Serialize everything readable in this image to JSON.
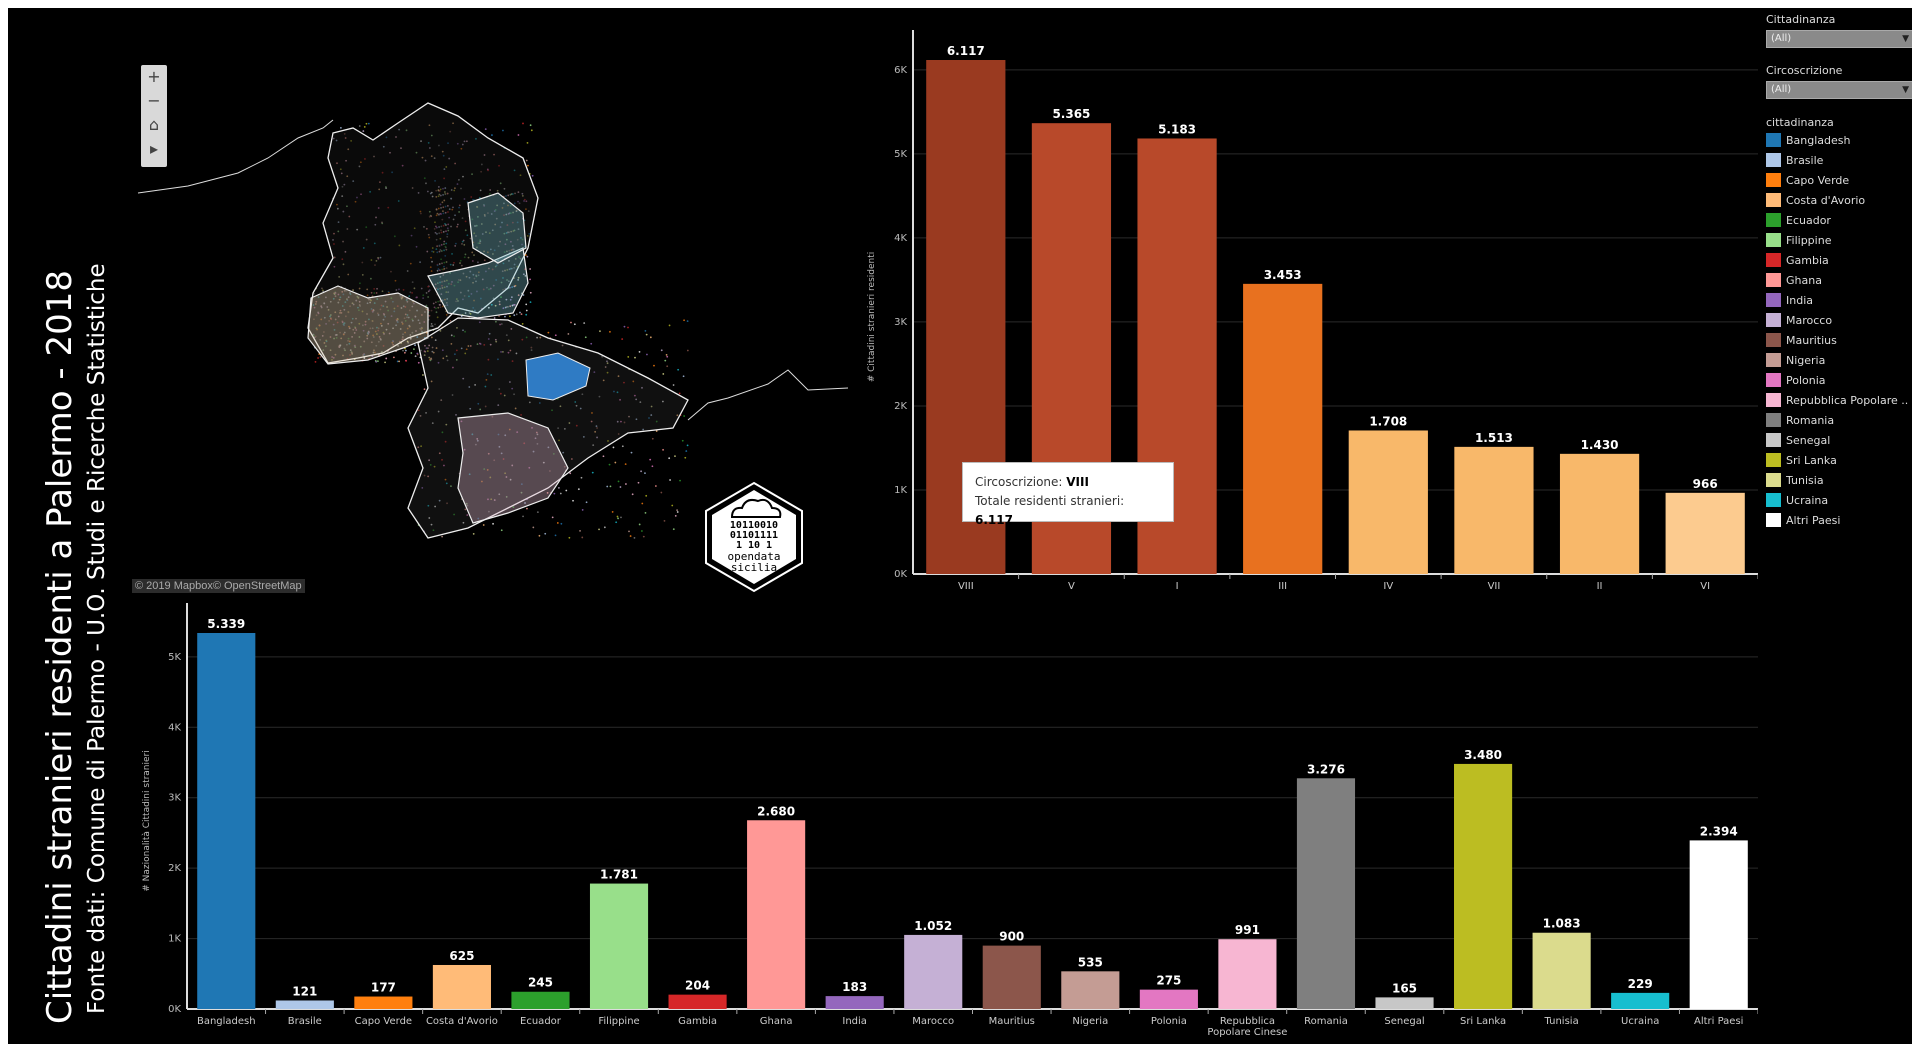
{
  "title": "Cittadini stranieri residenti a Palermo - 2018",
  "subtitle": "Fonte dati: Comune di Palermo - U.O. Studi e Ricerche Statistiche",
  "map": {
    "controls": [
      "+",
      "−",
      "⌂",
      "▸"
    ],
    "attribution": "© 2019 Mapbox© OpenStreetMap",
    "logo_lines": [
      "10110010",
      "01101111",
      "1   10 1",
      "opendata",
      "sicilia"
    ]
  },
  "tooltip": {
    "label1": "Circoscrizione: ",
    "value1": "VIII",
    "label2": "Totale residenti stranieri: ",
    "value2": "6.117"
  },
  "filters": [
    {
      "title": "Cittadinanza",
      "value": "(All)"
    },
    {
      "title": "Circoscrizione",
      "value": "(All)"
    }
  ],
  "legend": {
    "title": "cittadinanza",
    "items": [
      {
        "label": "Bangladesh",
        "color": "#1f77b4"
      },
      {
        "label": "Brasile",
        "color": "#aec7e8"
      },
      {
        "label": "Capo Verde",
        "color": "#ff7f0e"
      },
      {
        "label": "Costa d'Avorio",
        "color": "#ffbb78"
      },
      {
        "label": "Ecuador",
        "color": "#2ca02c"
      },
      {
        "label": "Filippine",
        "color": "#98df8a"
      },
      {
        "label": "Gambia",
        "color": "#d62728"
      },
      {
        "label": "Ghana",
        "color": "#ff9896"
      },
      {
        "label": "India",
        "color": "#9467bd"
      },
      {
        "label": "Marocco",
        "color": "#c5b0d5"
      },
      {
        "label": "Mauritius",
        "color": "#8c564b"
      },
      {
        "label": "Nigeria",
        "color": "#c49c94"
      },
      {
        "label": "Polonia",
        "color": "#e377c2"
      },
      {
        "label": "Repubblica Popolare ..",
        "color": "#f7b6d2"
      },
      {
        "label": "Romania",
        "color": "#7f7f7f"
      },
      {
        "label": "Senegal",
        "color": "#c7c7c7"
      },
      {
        "label": "Sri Lanka",
        "color": "#bcbd22"
      },
      {
        "label": "Tunisia",
        "color": "#dbdb8d"
      },
      {
        "label": "Ucraina",
        "color": "#17becf"
      },
      {
        "label": "Altri Paesi",
        "color": "#ffffff"
      }
    ]
  },
  "chart_data": [
    {
      "type": "bar",
      "ylabel": "# Cittadini stranieri residenti",
      "categories": [
        "VIII",
        "V",
        "I",
        "III",
        "IV",
        "VII",
        "II",
        "VI"
      ],
      "values": [
        6117,
        5365,
        5183,
        3453,
        1708,
        1513,
        1430,
        966
      ],
      "value_labels": [
        "6.117",
        "5.365",
        "5.183",
        "3.453",
        "1.708",
        "1.513",
        "1.430",
        "966"
      ],
      "colors": [
        "#9a3a20",
        "#b8492a",
        "#b8492a",
        "#e8711f",
        "#f8b86a",
        "#f8b86a",
        "#f8b86a",
        "#fccb8f"
      ],
      "ylim": [
        0,
        6117
      ],
      "yticks": [
        0,
        1000,
        2000,
        3000,
        4000,
        5000,
        6000
      ],
      "ytick_labels": [
        "0K",
        "1K",
        "2K",
        "3K",
        "4K",
        "5K",
        "6K"
      ],
      "grid": true
    },
    {
      "type": "bar",
      "ylabel": "# Nazionalità Cittadini stranieri",
      "categories": [
        "Bangladesh",
        "Brasile",
        "Capo Verde",
        "Costa d'Avorio",
        "Ecuador",
        "Filippine",
        "Gambia",
        "Ghana",
        "India",
        "Marocco",
        "Mauritius",
        "Nigeria",
        "Polonia",
        "Repubblica Popolare Cinese",
        "Romania",
        "Senegal",
        "Sri Lanka",
        "Tunisia",
        "Ucraina",
        "Altri Paesi"
      ],
      "category_lines": [
        [
          "Bangladesh"
        ],
        [
          "Brasile"
        ],
        [
          "Capo Verde"
        ],
        [
          "Costa d'Avorio"
        ],
        [
          "Ecuador"
        ],
        [
          "Filippine"
        ],
        [
          "Gambia"
        ],
        [
          "Ghana"
        ],
        [
          "India"
        ],
        [
          "Marocco"
        ],
        [
          "Mauritius"
        ],
        [
          "Nigeria"
        ],
        [
          "Polonia"
        ],
        [
          "Repubblica",
          "Popolare Cinese"
        ],
        [
          "Romania"
        ],
        [
          "Senegal"
        ],
        [
          "Sri Lanka"
        ],
        [
          "Tunisia"
        ],
        [
          "Ucraina"
        ],
        [
          "Altri Paesi"
        ]
      ],
      "values": [
        5339,
        121,
        177,
        625,
        245,
        1781,
        204,
        2680,
        183,
        1052,
        900,
        535,
        275,
        991,
        3276,
        165,
        3480,
        1083,
        229,
        2394
      ],
      "value_labels": [
        "5.339",
        "121",
        "177",
        "625",
        "245",
        "1.781",
        "204",
        "2.680",
        "183",
        "1.052",
        "900",
        "535",
        "275",
        "991",
        "3.276",
        "165",
        "3.480",
        "1.083",
        "229",
        "2.394"
      ],
      "colors": [
        "#1f77b4",
        "#aec7e8",
        "#ff7f0e",
        "#ffbb78",
        "#2ca02c",
        "#98df8a",
        "#d62728",
        "#ff9896",
        "#9467bd",
        "#c5b0d5",
        "#8c564b",
        "#c49c94",
        "#e377c2",
        "#f7b6d2",
        "#7f7f7f",
        "#c7c7c7",
        "#bcbd22",
        "#dbdb8d",
        "#17becf",
        "#ffffff"
      ],
      "ylim": [
        0,
        5339
      ],
      "yticks": [
        0,
        1000,
        2000,
        3000,
        4000,
        5000
      ],
      "ytick_labels": [
        "0K",
        "1K",
        "2K",
        "3K",
        "4K",
        "5K"
      ],
      "grid": true
    }
  ]
}
